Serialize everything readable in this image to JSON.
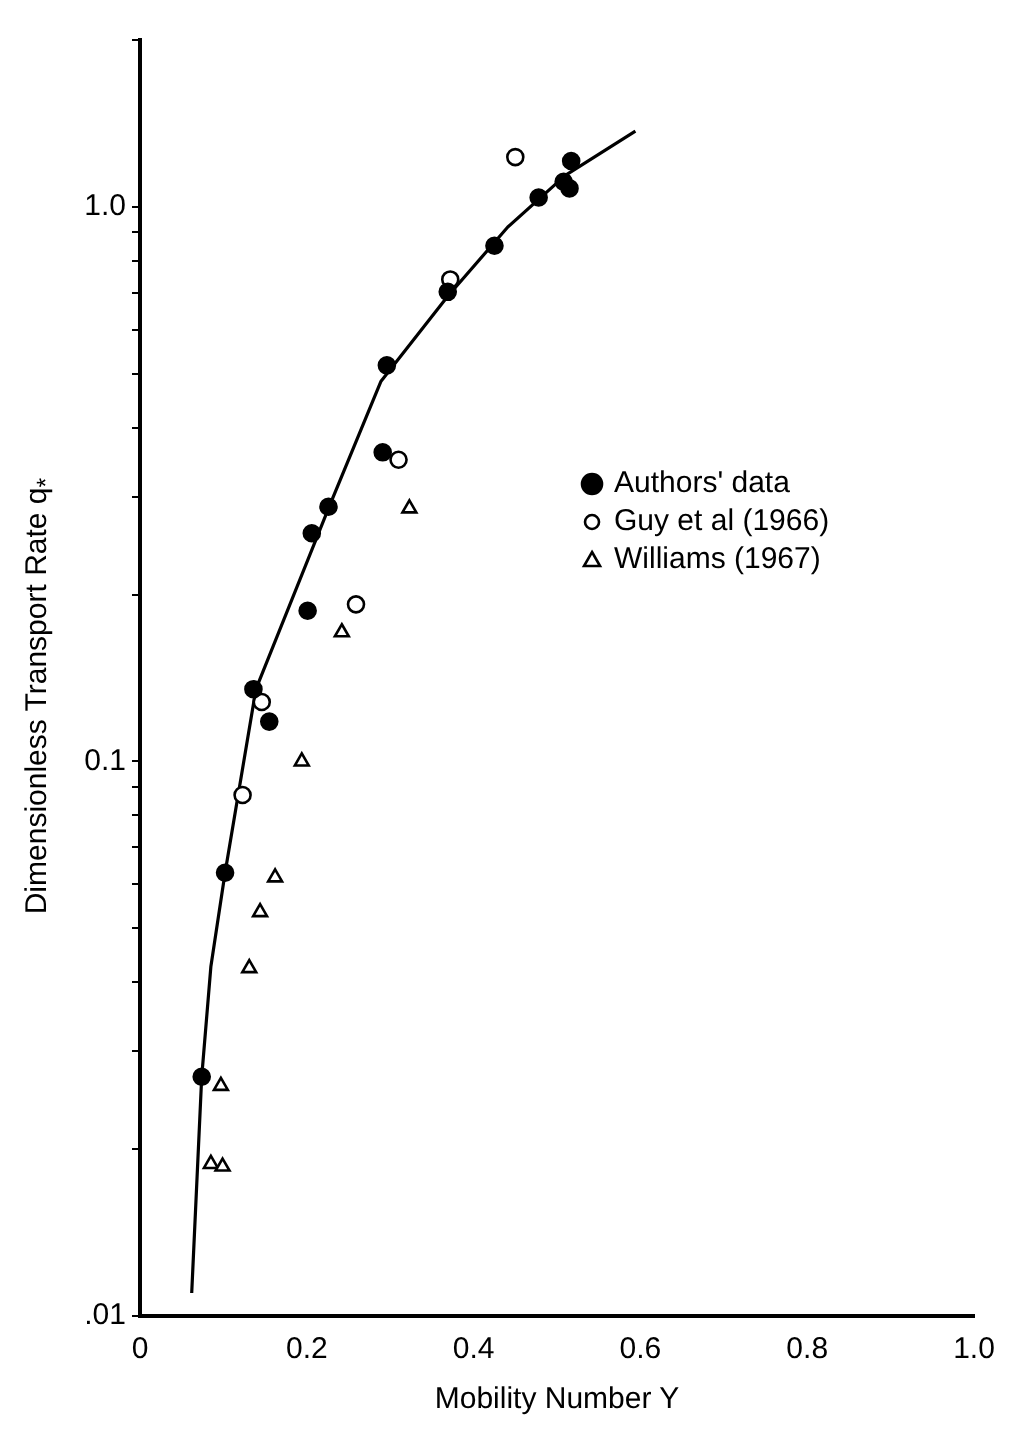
{
  "chart_data": {
    "type": "scatter",
    "xlabel": "Mobility Number Y",
    "ylabel": "Dimensionless Transport Rate q$_{*}$",
    "log": "y",
    "grid": false,
    "legend": "right",
    "xlim": [
      0,
      1
    ],
    "xticks": [
      0,
      0.2,
      0.4,
      0.6,
      0.8,
      {
        "value": 1,
        "label": "1.0"
      }
    ],
    "ylim": [
      0.01,
      2
    ],
    "yticks": [
      {
        "value": 0.01,
        "label": ".01"
      },
      {
        "value": 0.02,
        "label": null
      },
      {
        "value": 0.03,
        "label": null
      },
      {
        "value": 0.04,
        "label": null
      },
      {
        "value": 0.05,
        "label": null
      },
      {
        "value": 0.06,
        "label": null
      },
      {
        "value": 0.07,
        "label": null
      },
      {
        "value": 0.08,
        "label": null
      },
      {
        "value": 0.09,
        "label": null
      },
      {
        "value": 0.1,
        "label": "0.1"
      },
      {
        "value": 0.2,
        "label": null
      },
      {
        "value": 0.3,
        "label": null
      },
      {
        "value": 0.4,
        "label": null
      },
      {
        "value": 0.5,
        "label": null
      },
      {
        "value": 0.6,
        "label": null
      },
      {
        "value": 0.7,
        "label": null
      },
      {
        "value": 0.8,
        "label": null
      },
      {
        "value": 0.9,
        "label": null
      },
      {
        "value": 1,
        "label": "1.0"
      },
      {
        "value": 2,
        "label": null
      }
    ],
    "series": [
      {
        "name": "Authors' data",
        "color": "#000000",
        "marker": "circle",
        "x": [
          0.074,
          0.102,
          0.136,
          0.155,
          0.201,
          0.206,
          0.226,
          0.291,
          0.296,
          0.369,
          0.425,
          0.478,
          0.508,
          0.515,
          0.517
        ],
        "values": [
          0.027,
          0.063,
          0.135,
          0.118,
          0.187,
          0.258,
          0.288,
          0.361,
          0.518,
          0.703,
          0.851,
          1.04,
          1.11,
          1.08,
          1.21
        ]
      },
      {
        "name": "Guy et al (1966)",
        "color": "#000000",
        "marker": "circle",
        "x": [
          0.123,
          0.146,
          0.259,
          0.31,
          0.372,
          0.45
        ],
        "values": [
          0.087,
          0.128,
          0.192,
          0.35,
          0.74,
          1.23
        ]
      },
      {
        "name": "Williams (1967)",
        "color": "#000000",
        "marker": "triangle",
        "x": [
          0.085,
          0.099,
          0.097,
          0.131,
          0.144,
          0.162,
          0.194,
          0.242,
          0.323
        ],
        "values": [
          0.0188,
          0.0186,
          0.026,
          0.0424,
          0.0535,
          0.0618,
          0.1,
          0.171,
          0.286
        ]
      },
      {
        "type": "line",
        "color": "#000000",
        "marker": "none",
        "x": [
          0.062,
          0.074,
          0.085,
          0.102,
          0.139,
          0.226,
          0.289,
          0.369,
          0.441,
          0.51,
          0.594
        ],
        "values": [
          0.011,
          0.027,
          0.0427,
          0.063,
          0.135,
          0.286,
          0.485,
          0.69,
          0.92,
          1.14,
          1.37
        ]
      }
    ]
  }
}
